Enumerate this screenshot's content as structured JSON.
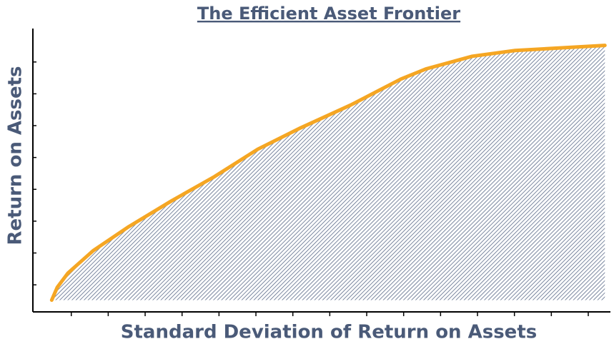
{
  "chart_data": {
    "type": "area",
    "title": "The Efficient Asset Frontier",
    "x_label": "Standard Deviation of Return on Assets",
    "y_label": "Return on Assets",
    "x": [
      0.47,
      0.62,
      0.91,
      1.59,
      2.56,
      3.72,
      4.88,
      6.05,
      7.21,
      8.57,
      9.92,
      10.6,
      11.86,
      13.02,
      15.45
    ],
    "series": [
      {
        "color": "#f5a623",
        "values": [
          0.52,
          0.92,
          1.37,
          2.07,
          2.83,
          3.64,
          4.4,
          5.26,
          5.93,
          6.65,
          7.46,
          7.78,
          8.18,
          8.36,
          8.52
        ]
      }
    ],
    "fill_color": "#5a6a88",
    "xlim": [
      -0.04,
      15.6
    ],
    "xticks": [
      1,
      2,
      3,
      4,
      5,
      6,
      7,
      8,
      9,
      10,
      11,
      12,
      13,
      14,
      15
    ],
    "ylim": [
      0.15,
      9.05
    ],
    "yticks": [
      1,
      2,
      3,
      4,
      5,
      6,
      7,
      8
    ]
  }
}
